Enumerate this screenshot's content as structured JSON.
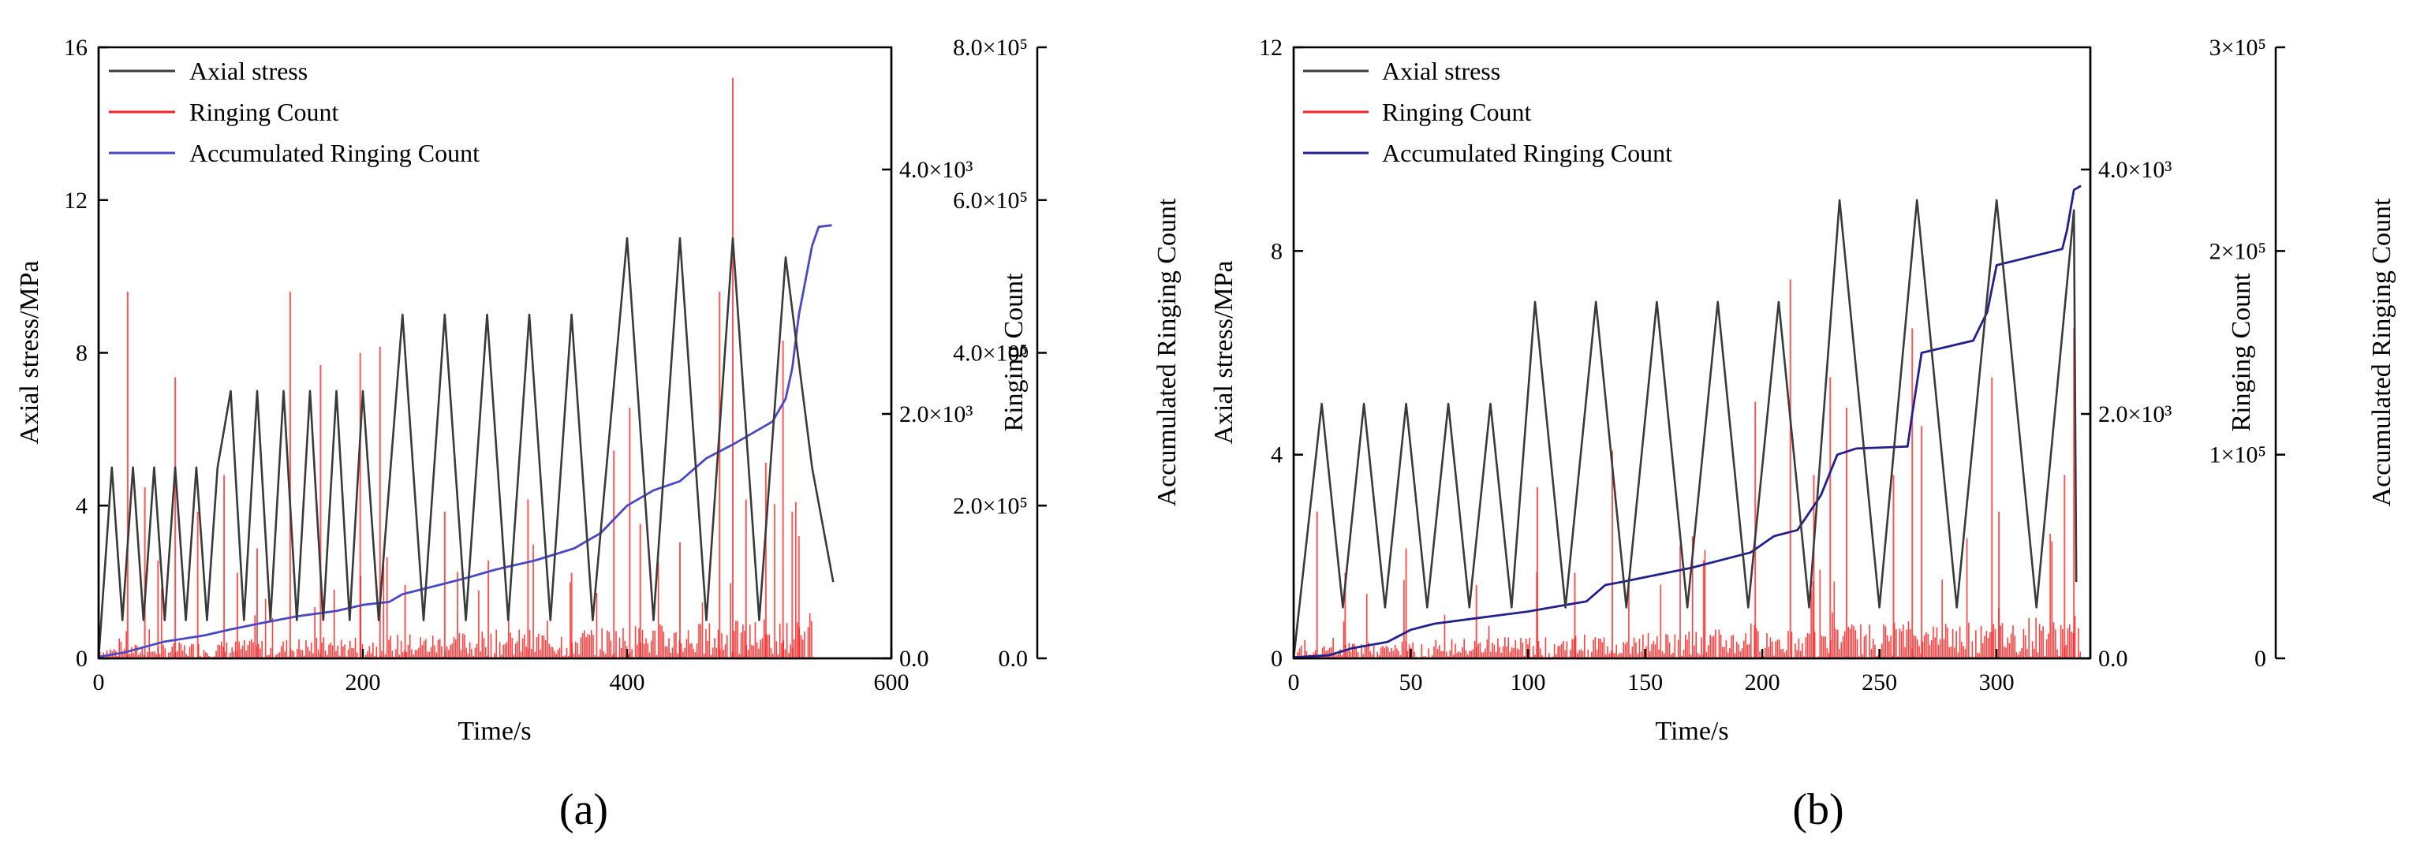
{
  "figure": {
    "panels": [
      {
        "label": "(a)"
      },
      {
        "label": "(b)"
      }
    ]
  },
  "chart_data": [
    {
      "type": "line",
      "panel": "(a)",
      "xlabel": "Time/s",
      "ylabel": "Axial stress/MPa",
      "y2label": "Ringing Count",
      "y3label": "Accumulated Ringing Count",
      "xlim": [
        0,
        600
      ],
      "ylim": [
        0,
        16
      ],
      "y2lim": [
        0,
        5000
      ],
      "y3lim": [
        0,
        800000
      ],
      "x_ticks": [
        "0",
        "200",
        "400",
        "600"
      ],
      "y_ticks": [
        "0",
        "4",
        "8",
        "12",
        "16"
      ],
      "y2_ticks": [
        "0.0",
        "2.0×10³",
        "4.0×10³"
      ],
      "y3_ticks": [
        "0.0",
        "2.0×10⁵",
        "4.0×10⁵",
        "6.0×10⁵",
        "8.0×10⁵"
      ],
      "legend": [
        "Axial stress",
        "Ringing Count",
        "Accumulated Ringing Count"
      ],
      "legend_position": "top-left",
      "colors": {
        "stress": "#3a3a3a",
        "ringing": "#ff2020",
        "accumulated": "#4848c8"
      },
      "series": [
        {
          "name": "Axial stress",
          "axis": "left",
          "x": [
            0,
            10,
            18,
            26,
            34,
            42,
            50,
            58,
            66,
            74,
            82,
            90,
            100,
            110,
            120,
            130,
            140,
            150,
            160,
            170,
            180,
            190,
            200,
            212,
            230,
            246,
            262,
            278,
            294,
            310,
            326,
            342,
            358,
            374,
            400,
            420,
            440,
            460,
            480,
            500,
            520,
            540,
            556
          ],
          "y": [
            0,
            5,
            1,
            5,
            1,
            5,
            1,
            5,
            1,
            5,
            1,
            5,
            7,
            1,
            7,
            1,
            7,
            1,
            7,
            1,
            7,
            1,
            7,
            1,
            9,
            1,
            9,
            1,
            9,
            1,
            9,
            1,
            9,
            1,
            11,
            1,
            11,
            1,
            11,
            1,
            10.5,
            5,
            2
          ]
        },
        {
          "name": "Ringing Count",
          "axis": "right",
          "spikes": [
            {
              "x": 22,
              "y": 3000
            },
            {
              "x": 35,
              "y": 1400
            },
            {
              "x": 45,
              "y": 800
            },
            {
              "x": 58,
              "y": 2300
            },
            {
              "x": 75,
              "y": 1200
            },
            {
              "x": 95,
              "y": 1500
            },
            {
              "x": 105,
              "y": 700
            },
            {
              "x": 120,
              "y": 900
            },
            {
              "x": 145,
              "y": 3000
            },
            {
              "x": 168,
              "y": 2400
            },
            {
              "x": 198,
              "y": 2500
            },
            {
              "x": 213,
              "y": 2550
            },
            {
              "x": 232,
              "y": 600
            },
            {
              "x": 262,
              "y": 1200
            },
            {
              "x": 295,
              "y": 800
            },
            {
              "x": 325,
              "y": 1300
            },
            {
              "x": 358,
              "y": 700
            },
            {
              "x": 390,
              "y": 1700
            },
            {
              "x": 402,
              "y": 2050
            },
            {
              "x": 410,
              "y": 1100
            },
            {
              "x": 440,
              "y": 950
            },
            {
              "x": 470,
              "y": 3000
            },
            {
              "x": 480,
              "y": 4750
            },
            {
              "x": 490,
              "y": 1300
            },
            {
              "x": 505,
              "y": 1600
            },
            {
              "x": 518,
              "y": 2600
            },
            {
              "x": 525,
              "y": 1200
            },
            {
              "x": 530,
              "y": 1000
            }
          ]
        },
        {
          "name": "Accumulated Ringing Count",
          "axis": "far-right",
          "x": [
            0,
            20,
            50,
            80,
            100,
            120,
            150,
            180,
            200,
            220,
            230,
            260,
            280,
            300,
            330,
            360,
            380,
            400,
            420,
            440,
            460,
            480,
            500,
            510,
            520,
            525,
            530,
            540,
            545,
            555
          ],
          "y": [
            2000,
            8000,
            22000,
            30000,
            38000,
            45000,
            55000,
            62000,
            70000,
            74000,
            84000,
            97000,
            106000,
            116000,
            128000,
            144000,
            164000,
            200000,
            220000,
            232000,
            262000,
            280000,
            300000,
            310000,
            340000,
            380000,
            450000,
            540000,
            565000,
            567000
          ]
        }
      ]
    },
    {
      "type": "line",
      "panel": "(b)",
      "xlabel": "Time/s",
      "ylabel": "Axial stress/MPa",
      "y2label": "Ringing Count",
      "y3label": "Accumulated Ringing Count",
      "xlim": [
        0,
        340
      ],
      "ylim": [
        0,
        12
      ],
      "y2lim": [
        0,
        5000
      ],
      "y3lim": [
        0,
        300000
      ],
      "x_ticks": [
        "0",
        "50",
        "100",
        "150",
        "200",
        "250",
        "300"
      ],
      "y_ticks": [
        "0",
        "4",
        "8",
        "12"
      ],
      "y2_ticks": [
        "0.0",
        "2.0×10³",
        "4.0×10³"
      ],
      "y3_ticks": [
        "0",
        "1×10⁵",
        "2×10⁵",
        "3×10⁵"
      ],
      "legend": [
        "Axial stress",
        "Ringing Count",
        "Accumulated Ringing Count"
      ],
      "legend_position": "top-left",
      "colors": {
        "stress": "#3a3a3a",
        "ringing": "#ff2020",
        "accumulated": "#202090"
      },
      "series": [
        {
          "name": "Axial stress",
          "axis": "left",
          "x": [
            0,
            12,
            21,
            30,
            39,
            48,
            57,
            66,
            75,
            84,
            93,
            103,
            116,
            129,
            142,
            155,
            168,
            181,
            194,
            207,
            220,
            233,
            250,
            266,
            283,
            300,
            317,
            333,
            334
          ],
          "y": [
            0,
            5,
            1,
            5,
            1,
            5,
            1,
            5,
            1,
            5,
            1,
            7,
            1,
            7,
            1,
            7,
            1,
            7,
            1,
            7,
            1,
            9,
            1,
            9,
            1,
            9,
            1,
            8.8,
            1.5
          ]
        },
        {
          "name": "Ringing Count",
          "axis": "right",
          "spikes": [
            {
              "x": 10,
              "y": 1200
            },
            {
              "x": 22,
              "y": 700
            },
            {
              "x": 48,
              "y": 900
            },
            {
              "x": 78,
              "y": 600
            },
            {
              "x": 104,
              "y": 1400
            },
            {
              "x": 120,
              "y": 700
            },
            {
              "x": 136,
              "y": 1700
            },
            {
              "x": 175,
              "y": 800
            },
            {
              "x": 197,
              "y": 2100
            },
            {
              "x": 212,
              "y": 3100
            },
            {
              "x": 222,
              "y": 1500
            },
            {
              "x": 229,
              "y": 2300
            },
            {
              "x": 236,
              "y": 2050
            },
            {
              "x": 256,
              "y": 1500
            },
            {
              "x": 264,
              "y": 2700
            },
            {
              "x": 268,
              "y": 1900
            },
            {
              "x": 298,
              "y": 2300
            },
            {
              "x": 301,
              "y": 1200
            },
            {
              "x": 329,
              "y": 1500
            },
            {
              "x": 333,
              "y": 2700
            }
          ]
        },
        {
          "name": "Accumulated Ringing Count",
          "axis": "far-right",
          "x": [
            0,
            15,
            25,
            40,
            50,
            60,
            80,
            100,
            110,
            125,
            133,
            140,
            170,
            195,
            205,
            215,
            225,
            232,
            240,
            262,
            264,
            268,
            290,
            296,
            300,
            328,
            330,
            333,
            336
          ],
          "y": [
            500,
            1500,
            5000,
            8000,
            14000,
            17000,
            20000,
            23000,
            25000,
            28000,
            36000,
            37500,
            44500,
            52000,
            60000,
            63000,
            80000,
            100000,
            103000,
            104000,
            120000,
            150000,
            156000,
            170000,
            193000,
            201000,
            210000,
            230000,
            232000
          ]
        }
      ]
    }
  ]
}
